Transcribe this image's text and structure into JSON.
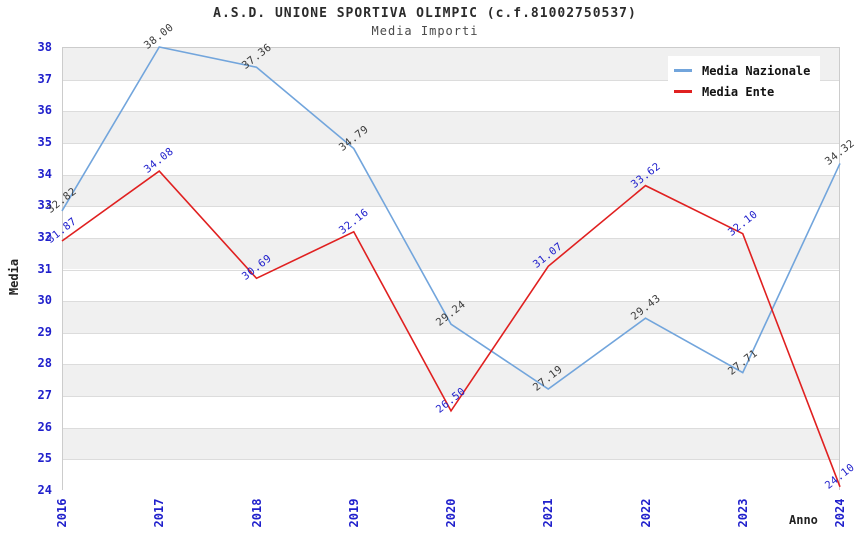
{
  "header": {
    "title": "A.S.D. UNIONE SPORTIVA OLIMPIC (c.f.81002750537)",
    "subtitle": "Media Importi"
  },
  "legend": {
    "position": "top-right",
    "items": [
      {
        "label": "Media Nazionale",
        "color": "#72a5dc"
      },
      {
        "label": "Media Ente",
        "color": "#e02020"
      }
    ]
  },
  "axes": {
    "x_label": "Anno",
    "y_label": "Media",
    "tick_color": "#2020cc"
  },
  "colors": {
    "band_gray": "#f0f0f0",
    "band_white": "#ffffff",
    "gridline": "#dcdcdc",
    "plot_border": "#cccccc",
    "national_line": "#72a5dc",
    "entity_line": "#e02020",
    "national_point_label": "#3a3a3a",
    "entity_point_label": "#2020cc"
  },
  "chart_data": {
    "type": "line",
    "title": "A.S.D. UNIONE SPORTIVA OLIMPIC (c.f.81002750537)",
    "subtitle": "Media Importi",
    "xlabel": "Anno",
    "ylabel": "Media",
    "x": [
      2016,
      2017,
      2018,
      2019,
      2020,
      2021,
      2022,
      2023,
      2024
    ],
    "series": [
      {
        "name": "Media Nazionale",
        "color": "#72a5dc",
        "label_color": "#3a3a3a",
        "values": [
          32.82,
          38.0,
          37.36,
          34.79,
          29.24,
          27.19,
          29.43,
          27.71,
          34.32
        ]
      },
      {
        "name": "Media Ente",
        "color": "#e02020",
        "label_color": "#2020cc",
        "values": [
          31.87,
          34.08,
          30.69,
          32.16,
          26.5,
          31.07,
          33.62,
          32.1,
          24.1
        ]
      }
    ],
    "ylim": [
      24,
      38
    ],
    "ytick_step": 1,
    "grid": "alternating-horizontal-bands",
    "legend_position": "top-right"
  }
}
